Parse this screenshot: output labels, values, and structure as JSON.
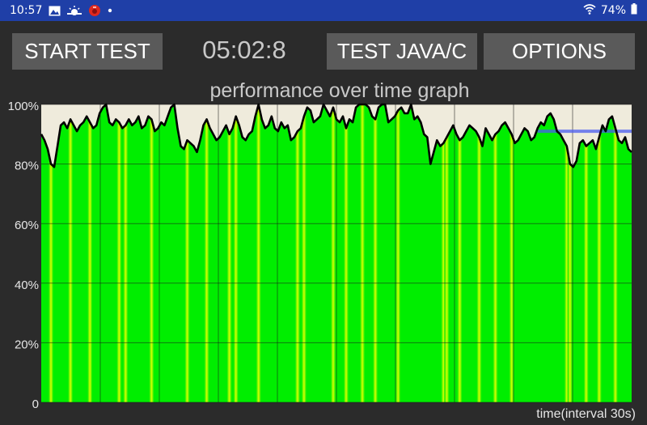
{
  "status": {
    "time": "10:57",
    "battery": "74%",
    "icons": [
      "gallery-icon",
      "weather-icon",
      "alert-app-icon",
      "dot-icon",
      "wifi-icon",
      "battery-icon"
    ]
  },
  "toolbar": {
    "start_label": "START TEST",
    "timer": "05:02:8",
    "java_label": "TEST JAVA/C",
    "options_label": "OPTIONS"
  },
  "colors": {
    "status_bar": "#1f3fa7",
    "background": "#2b2b2b",
    "button": "#5a5a5a",
    "plot_background": "#efebdc",
    "fill_green": "#00ee00",
    "fill_yellow": "#d8ff00",
    "line": "#000000",
    "marker": "#4a5cf0"
  },
  "chart_data": {
    "type": "area",
    "title": "performance over time graph",
    "xlabel": "time(interval 30s)",
    "ylabel": "",
    "ylim": [
      0,
      100
    ],
    "yticks": [
      "0",
      "20%",
      "40%",
      "60%",
      "80%",
      "100%"
    ],
    "x_range": [
      0,
      300
    ],
    "x_grid_interval": 30,
    "grid": true,
    "series": [
      {
        "values": [
          90,
          88,
          85,
          80,
          79,
          86,
          93,
          94,
          92,
          95,
          93,
          91,
          93,
          94,
          96,
          94,
          92,
          93,
          97,
          99,
          100,
          94,
          93,
          95,
          94,
          92,
          93,
          95,
          93,
          94,
          96,
          92,
          93,
          96,
          95,
          91,
          92,
          94,
          93,
          96,
          99,
          100,
          92,
          86,
          85,
          88,
          87,
          86,
          84,
          88,
          93,
          95,
          92,
          90,
          88,
          89,
          91,
          93,
          90,
          92,
          96,
          93,
          89,
          88,
          90,
          91,
          96,
          100,
          95,
          92,
          93,
          96,
          92,
          91,
          94,
          92,
          93,
          88,
          89,
          91,
          92,
          96,
          99,
          98,
          94,
          95,
          96,
          100,
          98,
          96,
          99,
          95,
          94,
          96,
          92,
          95,
          94,
          99,
          100,
          100,
          100,
          99,
          96,
          95,
          99,
          100,
          100,
          94,
          95,
          96,
          98,
          99,
          97,
          97,
          100,
          95,
          96,
          94,
          90,
          89,
          80,
          84,
          88,
          86,
          87,
          89,
          91,
          93,
          90,
          88,
          89,
          91,
          93,
          92,
          91,
          89,
          86,
          92,
          90,
          88,
          90,
          91,
          93,
          94,
          92,
          90,
          87,
          88,
          90,
          92,
          91,
          88,
          89,
          92,
          94,
          93,
          96,
          97,
          95,
          91,
          90,
          88,
          86,
          80,
          79,
          81,
          87,
          88,
          86,
          87,
          88,
          85,
          89,
          93,
          91,
          95,
          96,
          92,
          88,
          87,
          89,
          85,
          84
        ],
        "color": "#000000"
      }
    ],
    "yellow_band_positions": [
      3,
      9,
      15,
      24,
      26,
      34,
      45,
      51,
      58,
      60,
      67,
      79,
      81,
      90,
      94,
      99,
      103,
      110,
      124,
      125,
      129,
      135,
      140,
      145,
      162,
      163,
      168,
      172,
      177
    ],
    "marker_line": {
      "x_start": 153,
      "x_end": 182,
      "y": 91,
      "color": "#4a5cf0"
    }
  }
}
